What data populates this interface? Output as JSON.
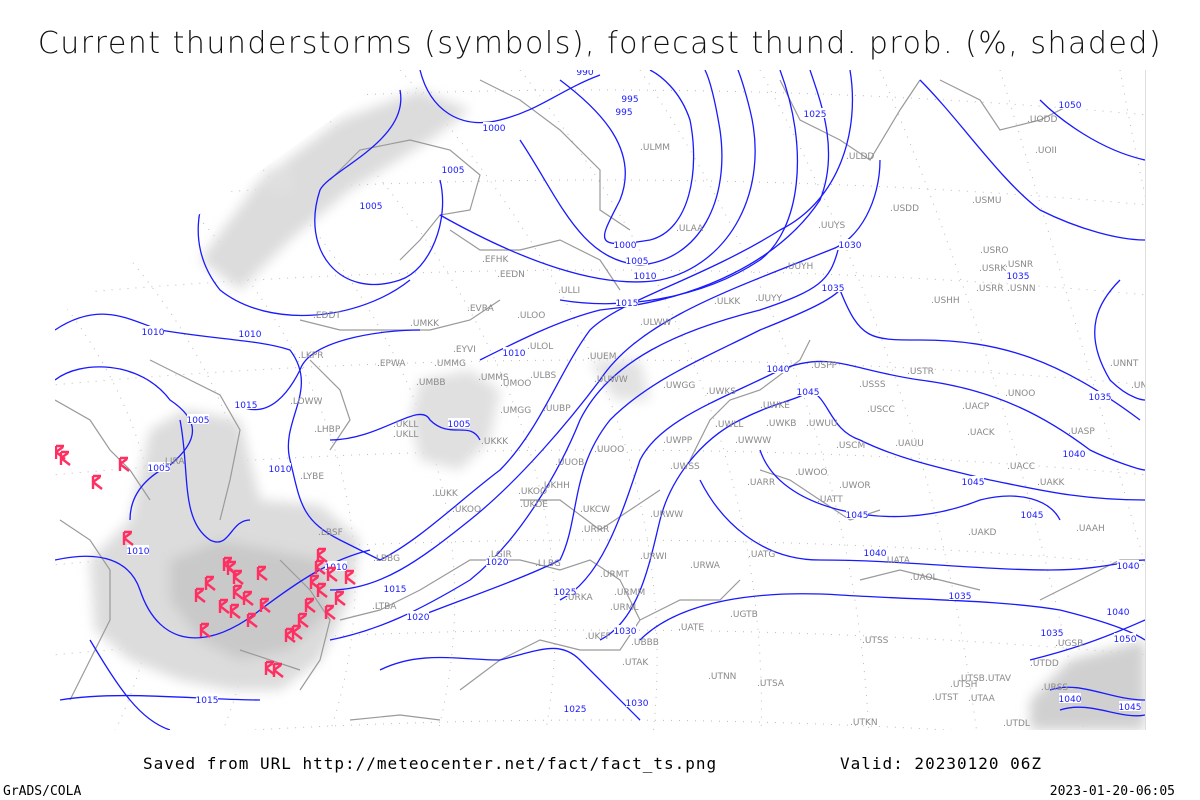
{
  "title": "Current thunderstorms (symbols), forecast thund. prob. (%, shaded)",
  "footer": {
    "saved_from": "Saved from URL http://meteocenter.net/fact/fact_ts.png",
    "valid": "Valid: 20230120 06Z",
    "software": "GrADS/COLA",
    "timestamp": "2023-01-20-06:05"
  },
  "colors": {
    "isobar": "#1a1aff",
    "coastline": "#9a9a9a",
    "thunderstorm_symbol": "#ff2f62",
    "probability_shading": "#d8d8d8"
  },
  "legend_symbol": "thunderstorm-icon",
  "isobar_labels": [
    "990",
    "995",
    "995",
    "1000",
    "1005",
    "1005",
    "1000",
    "1005",
    "1010",
    "1015",
    "1010",
    "1010",
    "1010",
    "1015",
    "1005",
    "1005",
    "1005",
    "1010",
    "1010",
    "1010",
    "1015",
    "1020",
    "1020",
    "1025",
    "1030",
    "1025",
    "1030",
    "1015",
    "1025",
    "1030",
    "1035",
    "1040",
    "1045",
    "1045",
    "1045",
    "1045",
    "1040",
    "1040",
    "1035",
    "1035",
    "1050",
    "1040",
    "1035",
    "1040",
    "1035",
    "1050",
    "1040",
    "1045"
  ],
  "stations": [
    "EFHK",
    "EEDN",
    "ULLI",
    "ULOO",
    "EVRA",
    "EDDT",
    "UMKK",
    "EPWA",
    "EYVI",
    "UMMG",
    "UMBB",
    "UMMS",
    "UMOO",
    "ULOL",
    "ULBS",
    "UMGG",
    "UUBP",
    "UKLL",
    "UKLL",
    "UKKK",
    "UKHH",
    "UKOO",
    "UKDE",
    "UKOO",
    "LUKK",
    "UUOB",
    "UUOO",
    "UUEM",
    "UUWW",
    "UKCW",
    "URRR",
    "URWW",
    "LKPR",
    "LOWW",
    "LHBP",
    "LYBE",
    "LBSF",
    "LBBG",
    "LTBA",
    "LIRA",
    "ULWW",
    "ULKK",
    "UUYY",
    "UUYH",
    "UUYS",
    "ULAA",
    "ULMM",
    "ULDD",
    "USDD",
    "USMU",
    "USRO",
    "USRK",
    "USNR",
    "USRR",
    "USNN",
    "USHH",
    "UODD",
    "UOII",
    "USPP",
    "USTR",
    "USSS",
    "USCC",
    "UNOO",
    "UACP",
    "UACK",
    "UASP",
    "USCM",
    "UAUU",
    "UACC",
    "UAKK",
    "UWOO",
    "UWOR",
    "UATT",
    "UARR",
    "UWKS",
    "UWKE",
    "UWLL",
    "UWWW",
    "UWKB",
    "UWUU",
    "UWPP",
    "UWGG",
    "UWSS",
    "UNNT",
    "UNBB",
    "UAKD",
    "UAAH",
    "UATG",
    "UATA",
    "UAOL",
    "URWA",
    "URWI",
    "URMT",
    "URMM",
    "URML",
    "UATE",
    "UGTB",
    "UBBB",
    "UTAK",
    "UTNN",
    "UTSA",
    "UTSS",
    "UTSB",
    "UTAV",
    "UTSH",
    "UTST",
    "UTAA",
    "UTDL",
    "UTKN",
    "UTDD",
    "UGSB",
    "URSS",
    "UKFF",
    "URKA",
    "LGIR",
    "LLBG"
  ]
}
